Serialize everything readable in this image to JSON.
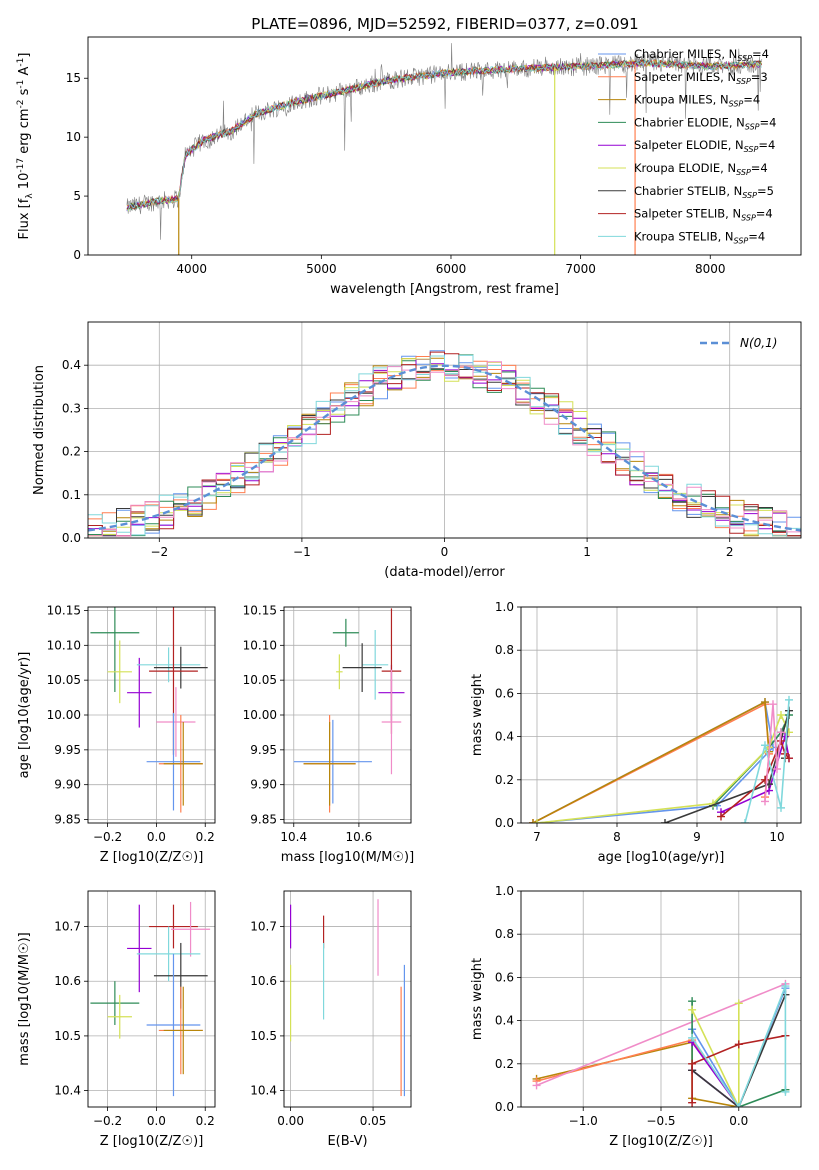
{
  "figure_title": "PLATE=0896, MJD=52592, FIBERID=0377, z=0.091",
  "colors": {
    "chabrier_miles": "#6495ed",
    "salpeter_miles": "#ff7f50",
    "kroupa_miles": "#b8860b",
    "chabrier_elodie": "#2e8b57",
    "salpeter_elodie": "#9400d3",
    "kroupa_elodie": "#d4e157",
    "chabrier_stelib": "#3a3a3a",
    "salpeter_stelib": "#b22222",
    "kroupa_stelib": "#80d8dc",
    "data": "#808080",
    "pink": "#f08cc8"
  },
  "legend_labels": [
    {
      "name": "Chabrier MILES",
      "n": "4",
      "color": "#6495ed"
    },
    {
      "name": "Salpeter MILES",
      "n": "3",
      "color": "#ff7f50"
    },
    {
      "name": "Kroupa MILES",
      "n": "4",
      "color": "#b8860b"
    },
    {
      "name": "Chabrier ELODIE",
      "n": "4",
      "color": "#2e8b57"
    },
    {
      "name": "Salpeter ELODIE",
      "n": "4",
      "color": "#9400d3"
    },
    {
      "name": "Kroupa ELODIE",
      "n": "4",
      "color": "#d4e157"
    },
    {
      "name": "Chabrier STELIB",
      "n": "5",
      "color": "#3a3a3a"
    },
    {
      "name": "Salpeter STELIB",
      "n": "4",
      "color": "#b22222"
    },
    {
      "name": "Kroupa STELIB",
      "n": "4",
      "color": "#80d8dc"
    }
  ],
  "chart_data": [
    {
      "id": "spectrum",
      "type": "line",
      "xlabel": "wavelength [Angstrom, rest frame]",
      "ylabel": "Flux [f_λ 10^-17 erg cm^-2 s^-1 A^-1]",
      "xlim": [
        3200,
        8700
      ],
      "ylim": [
        0,
        18.5
      ],
      "xticks": [
        4000,
        5000,
        6000,
        7000,
        8000
      ],
      "yticks": [
        0,
        5,
        10,
        15
      ],
      "grid": false,
      "legend_position": "top-right",
      "continuum_knots": [
        [
          3500,
          4.0
        ],
        [
          3700,
          4.5
        ],
        [
          3900,
          4.8
        ],
        [
          3950,
          8.5
        ],
        [
          4100,
          9.8
        ],
        [
          4300,
          10.5
        ],
        [
          4500,
          12.0
        ],
        [
          4800,
          13.0
        ],
        [
          5000,
          13.5
        ],
        [
          5200,
          14.0
        ],
        [
          5500,
          14.8
        ],
        [
          6000,
          15.5
        ],
        [
          6500,
          15.8
        ],
        [
          7000,
          16.0
        ],
        [
          7500,
          16.3
        ],
        [
          8000,
          16.0
        ],
        [
          8400,
          16.2
        ]
      ],
      "series_range": [
        3500,
        8400
      ]
    },
    {
      "id": "residuals",
      "type": "histogram",
      "xlabel": "(data-model)/error",
      "ylabel": "Normed distribution",
      "xlim": [
        -2.5,
        2.5
      ],
      "ylim": [
        0,
        0.5
      ],
      "xticks": [
        -2,
        -1,
        0,
        1,
        2
      ],
      "yticks": [
        0.0,
        0.1,
        0.2,
        0.3,
        0.4
      ],
      "grid": true,
      "legend": "N(0,1)",
      "legend_position": "top-right",
      "bin_width": 0.1,
      "normal_curve": {
        "mean": 0,
        "sigma": 1
      }
    },
    {
      "id": "z_age",
      "type": "errorbar",
      "xlabel": "Z [log10(Z/Z☉)]",
      "ylabel": "age [log10(age/yr)]",
      "xlim": [
        -0.28,
        0.24
      ],
      "ylim": [
        9.845,
        10.155
      ],
      "xticks": [
        -0.2,
        0.0,
        0.2
      ],
      "yticks": [
        9.85,
        9.9,
        9.95,
        10.0,
        10.05,
        10.1,
        10.15
      ],
      "grid": true,
      "points": [
        {
          "color": "#2e8b57",
          "x": -0.17,
          "xerr": 0.1,
          "y": 10.118,
          "yerr": 0.085
        },
        {
          "color": "#d4e157",
          "x": -0.15,
          "xerr": 0.05,
          "y": 10.062,
          "yerr": 0.045
        },
        {
          "color": "#9400d3",
          "x": -0.07,
          "xerr": 0.05,
          "y": 10.032,
          "yerr": 0.05
        },
        {
          "color": "#80d8dc",
          "x": 0.05,
          "xerr": 0.13,
          "y": 10.072,
          "yerr": 0.025
        },
        {
          "color": "#3a3a3a",
          "x": 0.1,
          "xerr": 0.11,
          "y": 10.068,
          "yerr": 0.03
        },
        {
          "color": "#b22222",
          "x": 0.07,
          "xerr": 0.1,
          "y": 10.063,
          "yerr": 0.12
        },
        {
          "color": "#f08cc8",
          "x": 0.08,
          "xerr": 0.08,
          "y": 9.99,
          "yerr": 0.05
        },
        {
          "color": "#6495ed",
          "x": 0.07,
          "xerr": 0.11,
          "y": 9.933,
          "yerr": 0.07
        },
        {
          "color": "#ff7f50",
          "x": 0.1,
          "xerr": 0.09,
          "y": 9.93,
          "yerr": 0.07
        },
        {
          "color": "#b8860b",
          "x": 0.11,
          "xerr": 0.08,
          "y": 9.93,
          "yerr": 0.06
        }
      ]
    },
    {
      "id": "mass_age",
      "type": "errorbar",
      "xlabel": "mass [log10(M/M☉)]",
      "ylabel": "",
      "xlim": [
        10.37,
        10.76
      ],
      "ylim": [
        9.845,
        10.155
      ],
      "xticks": [
        10.4,
        10.6
      ],
      "yticks": [
        9.85,
        9.9,
        9.95,
        10.0,
        10.05,
        10.1,
        10.15
      ],
      "grid": true,
      "points": [
        {
          "color": "#2e8b57",
          "x": 10.56,
          "xerr": 0.04,
          "y": 10.118,
          "yerr": 0.02
        },
        {
          "color": "#d4e157",
          "x": 10.54,
          "xerr": 0.01,
          "y": 10.062,
          "yerr": 0.025
        },
        {
          "color": "#9400d3",
          "x": 10.7,
          "xerr": 0.04,
          "y": 10.032,
          "yerr": 0.04
        },
        {
          "color": "#80d8dc",
          "x": 10.65,
          "xerr": 0.04,
          "y": 10.072,
          "yerr": 0.05
        },
        {
          "color": "#3a3a3a",
          "x": 10.61,
          "xerr": 0.06,
          "y": 10.068,
          "yerr": 0.035
        },
        {
          "color": "#b22222",
          "x": 10.7,
          "xerr": 0.03,
          "y": 10.063,
          "yerr": 0.09
        },
        {
          "color": "#f08cc8",
          "x": 10.7,
          "xerr": 0.03,
          "y": 9.99,
          "yerr": 0.075
        },
        {
          "color": "#6495ed",
          "x": 10.52,
          "xerr": 0.12,
          "y": 9.933,
          "yerr": 0.06
        },
        {
          "color": "#ff7f50",
          "x": 10.51,
          "xerr": 0.08,
          "y": 9.93,
          "yerr": 0.07
        },
        {
          "color": "#b8860b",
          "x": 10.51,
          "xerr": 0.08,
          "y": 9.93,
          "yerr": 0.06
        }
      ]
    },
    {
      "id": "mw_age",
      "type": "line",
      "xlabel": "age [log10(age/yr)]",
      "ylabel": "mass weight",
      "xlim": [
        6.8,
        10.3
      ],
      "ylim": [
        0,
        1.0
      ],
      "xticks": [
        7,
        8,
        9,
        10
      ],
      "yticks": [
        0.0,
        0.2,
        0.4,
        0.6,
        0.8,
        1.0
      ],
      "grid": true,
      "series": [
        {
          "color": "#6495ed",
          "x": [
            6.95,
            9.85,
            9.95,
            9.25,
            7.0
          ],
          "y": [
            0.0,
            0.56,
            0.35,
            0.08,
            0.0
          ]
        },
        {
          "color": "#ff7f50",
          "x": [
            6.95,
            9.85,
            9.9,
            9.85
          ],
          "y": [
            0.0,
            0.55,
            0.32,
            0.12
          ]
        },
        {
          "color": "#b8860b",
          "x": [
            6.95,
            9.85,
            9.9
          ],
          "y": [
            0.0,
            0.56,
            0.33
          ]
        },
        {
          "color": "#2e8b57",
          "x": [
            9.2,
            9.9,
            10.05,
            10.15
          ],
          "y": [
            0.08,
            0.35,
            0.42,
            0.5
          ]
        },
        {
          "color": "#9400d3",
          "x": [
            9.3,
            9.9,
            10.1,
            10.15
          ],
          "y": [
            0.05,
            0.15,
            0.4,
            0.3
          ]
        },
        {
          "color": "#d4e157",
          "x": [
            7.0,
            9.2,
            9.9,
            10.05,
            10.15
          ],
          "y": [
            0.0,
            0.09,
            0.35,
            0.5,
            0.42
          ]
        },
        {
          "color": "#3a3a3a",
          "x": [
            8.6,
            9.9,
            10.15,
            10.1
          ],
          "y": [
            0.0,
            0.18,
            0.52,
            0.3
          ]
        },
        {
          "color": "#b22222",
          "x": [
            9.3,
            9.85,
            10.05,
            10.1,
            10.15
          ],
          "y": [
            0.03,
            0.2,
            0.38,
            0.32,
            0.3
          ]
        },
        {
          "color": "#80d8dc",
          "x": [
            9.6,
            9.85,
            10.05,
            10.15
          ],
          "y": [
            0.0,
            0.36,
            0.07,
            0.57
          ]
        },
        {
          "color": "#f08cc8",
          "x": [
            9.85,
            9.95,
            10.0,
            10.05
          ],
          "y": [
            0.1,
            0.55,
            0.25,
            0.42
          ]
        }
      ]
    },
    {
      "id": "z_mass",
      "type": "errorbar",
      "xlabel": "Z [log10(Z/Z☉)]",
      "ylabel": "mass [log10(M/M☉)]",
      "xlim": [
        -0.28,
        0.24
      ],
      "ylim": [
        10.37,
        10.765
      ],
      "xticks": [
        -0.2,
        0.0,
        0.2
      ],
      "yticks": [
        10.4,
        10.5,
        10.6,
        10.7
      ],
      "grid": true,
      "points": [
        {
          "color": "#9400d3",
          "x": -0.07,
          "xerr": 0.05,
          "y": 10.66,
          "yerr": 0.08
        },
        {
          "color": "#b22222",
          "x": 0.07,
          "xerr": 0.1,
          "y": 10.7,
          "yerr": 0.04
        },
        {
          "color": "#f08cc8",
          "x": 0.14,
          "xerr": 0.08,
          "y": 10.695,
          "yerr": 0.05
        },
        {
          "color": "#80d8dc",
          "x": 0.05,
          "xerr": 0.13,
          "y": 10.65,
          "yerr": 0.05
        },
        {
          "color": "#3a3a3a",
          "x": 0.1,
          "xerr": 0.11,
          "y": 10.61,
          "yerr": 0.06
        },
        {
          "color": "#2e8b57",
          "x": -0.17,
          "xerr": 0.1,
          "y": 10.56,
          "yerr": 0.04
        },
        {
          "color": "#d4e157",
          "x": -0.15,
          "xerr": 0.05,
          "y": 10.535,
          "yerr": 0.04
        },
        {
          "color": "#6495ed",
          "x": 0.07,
          "xerr": 0.11,
          "y": 10.52,
          "yerr": 0.13
        },
        {
          "color": "#ff7f50",
          "x": 0.1,
          "xerr": 0.09,
          "y": 10.51,
          "yerr": 0.08
        },
        {
          "color": "#b8860b",
          "x": 0.11,
          "xerr": 0.08,
          "y": 10.51,
          "yerr": 0.08
        }
      ]
    },
    {
      "id": "ebv_mass",
      "type": "errorbar",
      "xlabel": "E(B-V)",
      "ylabel": "",
      "xlim": [
        -0.004,
        0.073
      ],
      "ylim": [
        10.37,
        10.765
      ],
      "xticks": [
        0.0,
        0.05
      ],
      "yticks": [
        10.4,
        10.5,
        10.6,
        10.7
      ],
      "grid": true,
      "points": [
        {
          "color": "#9400d3",
          "x": 0.0,
          "xerr": 0,
          "y": 10.7,
          "yerr": 0.04
        },
        {
          "color": "#d4e157",
          "x": 0.0,
          "xerr": 0,
          "y": 10.56,
          "yerr": 0.07
        },
        {
          "color": "#b22222",
          "x": 0.02,
          "xerr": 0,
          "y": 10.69,
          "yerr": 0.03
        },
        {
          "color": "#80d8dc",
          "x": 0.02,
          "xerr": 0,
          "y": 10.6,
          "yerr": 0.07
        },
        {
          "color": "#f08cc8",
          "x": 0.053,
          "xerr": 0,
          "y": 10.68,
          "yerr": 0.07
        },
        {
          "color": "#ff7f50",
          "x": 0.067,
          "xerr": 0,
          "y": 10.49,
          "yerr": 0.1
        },
        {
          "color": "#6495ed",
          "x": 0.069,
          "xerr": 0,
          "y": 10.51,
          "yerr": 0.12
        }
      ]
    },
    {
      "id": "mw_z",
      "type": "line",
      "xlabel": "Z [log10(Z/Z☉)]",
      "ylabel": "mass weight",
      "xlim": [
        -1.4,
        0.4
      ],
      "ylim": [
        0,
        1.0
      ],
      "xticks": [
        -1.0,
        -0.5,
        0.0
      ],
      "yticks": [
        0.0,
        0.2,
        0.4,
        0.6,
        0.8,
        1.0
      ],
      "grid": true,
      "series": [
        {
          "color": "#b8860b",
          "x": [
            -1.3,
            -0.3,
            -0.3,
            0.0
          ],
          "y": [
            0.13,
            0.3,
            0.04,
            0.0
          ]
        },
        {
          "color": "#ff7f50",
          "x": [
            -1.3,
            -0.3,
            0.0
          ],
          "y": [
            0.12,
            0.31,
            0.0
          ]
        },
        {
          "color": "#f08cc8",
          "x": [
            -1.3,
            0.3
          ],
          "y": [
            0.1,
            0.57
          ]
        },
        {
          "color": "#6495ed",
          "x": [
            -0.3,
            0.0,
            0.3
          ],
          "y": [
            0.36,
            0.0,
            0.55
          ]
        },
        {
          "color": "#2e8b57",
          "x": [
            -0.3,
            -0.3,
            0.0,
            0.3
          ],
          "y": [
            0.49,
            0.17,
            0.0,
            0.08
          ]
        },
        {
          "color": "#9400d3",
          "x": [
            -0.3,
            0.0,
            -0.3
          ],
          "y": [
            0.17,
            0.0,
            0.3
          ]
        },
        {
          "color": "#d4e157",
          "x": [
            -0.3,
            0.0,
            0.0
          ],
          "y": [
            0.45,
            0.0,
            0.48
          ]
        },
        {
          "color": "#3a3a3a",
          "x": [
            -0.3,
            0.0,
            0.3
          ],
          "y": [
            0.17,
            0.0,
            0.52
          ]
        },
        {
          "color": "#b22222",
          "x": [
            -0.3,
            -0.3,
            0.0,
            0.3
          ],
          "y": [
            0.02,
            0.2,
            0.29,
            0.33
          ]
        },
        {
          "color": "#80d8dc",
          "x": [
            -0.3,
            0.0,
            0.3,
            0.3
          ],
          "y": [
            0.32,
            0.0,
            0.56,
            0.07
          ]
        }
      ]
    }
  ]
}
